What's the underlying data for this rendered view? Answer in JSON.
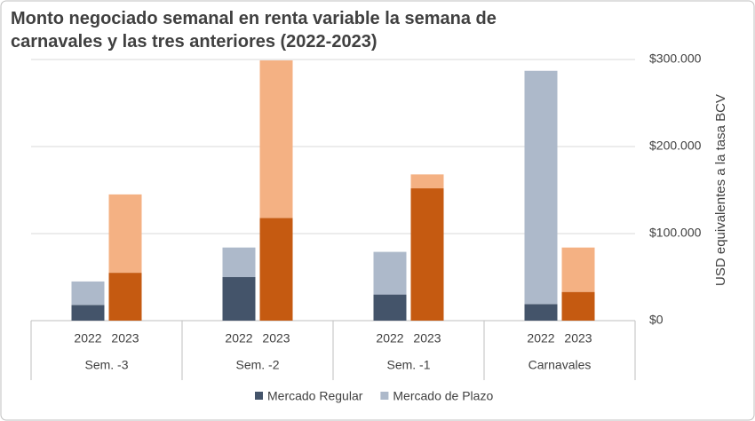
{
  "chart_data": {
    "type": "grouped-stacked-bar",
    "title": "Monto negociado semanal en renta variable la semana de carnavales y las tres anteriores (2022-2023)",
    "y_label": "USD equivalentes a la tasa BCV",
    "groups": [
      "Sem. -3",
      "Sem. -2",
      "Sem. -1",
      "Carnavales"
    ],
    "categories": [
      "2022",
      "2023",
      "2022",
      "2023",
      "2022",
      "2023",
      "2022",
      "2023"
    ],
    "series": [
      {
        "name": "Mercado Regular",
        "color": "#44546a",
        "colors": [
          "#44546a",
          "#c55a11"
        ],
        "values": [
          18000,
          55000,
          50000,
          118000,
          30000,
          152000,
          19000,
          33000
        ]
      },
      {
        "name": "Mercado de Plazo",
        "color": "#adb9ca",
        "colors": [
          "#adb9ca",
          "#f4b183"
        ],
        "values": [
          27000,
          90000,
          34000,
          181000,
          49000,
          16000,
          268000,
          51000
        ]
      }
    ],
    "ylim": [
      0,
      300000
    ],
    "yticks": [
      {
        "value": 0,
        "label": "$0"
      },
      {
        "value": 100000,
        "label": "$100.000"
      },
      {
        "value": 200000,
        "label": "$200.000"
      },
      {
        "value": 300000,
        "label": "$300.000"
      }
    ],
    "y_axis_side": "right",
    "grid": true,
    "legend": "bottom"
  }
}
